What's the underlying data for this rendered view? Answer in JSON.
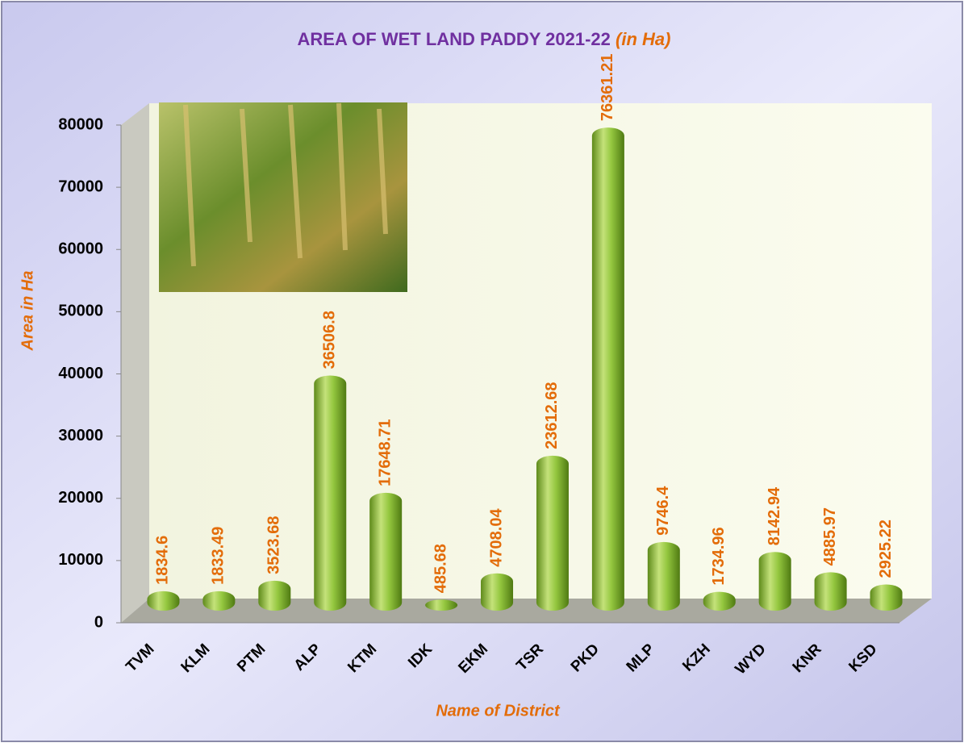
{
  "chart_data": {
    "type": "bar",
    "title": "AREA OF WET LAND PADDY 2021-22",
    "subtitle": "(in Ha)",
    "x_label": "Name of District",
    "y_label": "Area in Ha",
    "categories": [
      "TVM",
      "KLM",
      "PTM",
      "ALP",
      "KTM",
      "IDK",
      "EKM",
      "TSR",
      "PKD",
      "MLP",
      "KZH",
      "WYD",
      "KNR",
      "KSD"
    ],
    "values": [
      1834.6,
      1833.49,
      3523.68,
      36506.8,
      17648.71,
      485.68,
      4708.04,
      23612.68,
      76361.21,
      9746.4,
      1734.96,
      8142.94,
      4885.97,
      2925.22
    ],
    "color": "#8cbf3a",
    "ylim": [
      0,
      80000
    ],
    "yticks": [
      0,
      10000,
      20000,
      30000,
      40000,
      50000,
      60000,
      70000,
      80000
    ],
    "grid": false
  }
}
